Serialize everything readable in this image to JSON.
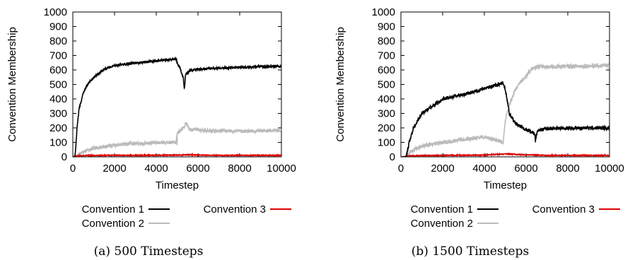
{
  "chart_data": [
    {
      "type": "line",
      "caption": "(a) 500 Timesteps",
      "xlabel": "Timestep",
      "ylabel": "Convention Membership",
      "xlim": [
        0,
        10000
      ],
      "ylim": [
        0,
        1000
      ],
      "xticks": [
        0,
        2000,
        4000,
        6000,
        8000,
        10000
      ],
      "yticks": [
        0,
        100,
        200,
        300,
        400,
        500,
        600,
        700,
        800,
        900,
        1000
      ],
      "legend_position": "bottom",
      "grid": false,
      "series": [
        {
          "name": "Convention 1",
          "color": "#000000",
          "noise": 8,
          "x": [
            0,
            100,
            150,
            200,
            300,
            500,
            700,
            1000,
            1500,
            2000,
            3000,
            4000,
            4950,
            5000,
            5150,
            5300,
            5350,
            5400,
            5600,
            6000,
            7000,
            8000,
            9000,
            10000
          ],
          "y": [
            0,
            0,
            80,
            200,
            330,
            440,
            500,
            550,
            605,
            630,
            648,
            662,
            675,
            650,
            610,
            540,
            460,
            570,
            595,
            605,
            612,
            618,
            622,
            625
          ]
        },
        {
          "name": "Convention 2",
          "color": "#bbbbbb",
          "noise": 12,
          "x": [
            0,
            100,
            300,
            500,
            1000,
            2000,
            3000,
            4000,
            4950,
            5000,
            5300,
            5450,
            5600,
            6000,
            7000,
            8000,
            9000,
            10000
          ],
          "y": [
            0,
            0,
            15,
            35,
            60,
            80,
            92,
            98,
            100,
            160,
            205,
            230,
            190,
            185,
            180,
            178,
            180,
            180
          ],
          "spikes": [
            [
              5400,
              240
            ],
            [
              5000,
              80
            ]
          ]
        },
        {
          "name": "Convention 3",
          "color": "#dd0000",
          "noise": 3,
          "x": [
            0,
            300,
            1000,
            3000,
            5000,
            5500,
            7000,
            10000
          ],
          "y": [
            0,
            8,
            10,
            10,
            12,
            14,
            10,
            10
          ]
        }
      ]
    },
    {
      "type": "line",
      "caption": "(b) 1500 Timesteps",
      "xlabel": "Timestep",
      "ylabel": "Convention Membership",
      "xlim": [
        0,
        10000
      ],
      "ylim": [
        0,
        1000
      ],
      "xticks": [
        0,
        2000,
        4000,
        6000,
        8000,
        10000
      ],
      "yticks": [
        0,
        100,
        200,
        300,
        400,
        500,
        600,
        700,
        800,
        900,
        1000
      ],
      "legend_position": "bottom",
      "grid": false,
      "series": [
        {
          "name": "Convention 1",
          "color": "#000000",
          "noise": 12,
          "x": [
            0,
            250,
            400,
            600,
            1000,
            1500,
            2000,
            3000,
            4000,
            4900,
            5000,
            5200,
            5500,
            6000,
            6400,
            6450,
            6550,
            7000,
            8000,
            9000,
            10000
          ],
          "y": [
            0,
            0,
            100,
            200,
            300,
            350,
            400,
            430,
            470,
            510,
            470,
            300,
            230,
            185,
            165,
            120,
            180,
            195,
            198,
            200,
            198
          ],
          "spikes": [
            [
              6450,
              100
            ]
          ]
        },
        {
          "name": "Convention 2",
          "color": "#bbbbbb",
          "noise": 14,
          "x": [
            0,
            250,
            500,
            1000,
            2000,
            3000,
            4000,
            4900,
            5000,
            5200,
            5500,
            6000,
            6300,
            6600,
            7000,
            8000,
            9000,
            10000
          ],
          "y": [
            0,
            0,
            40,
            75,
            100,
            120,
            140,
            100,
            250,
            360,
            470,
            560,
            610,
            620,
            622,
            625,
            628,
            630
          ]
        },
        {
          "name": "Convention 3",
          "color": "#dd0000",
          "noise": 3,
          "x": [
            0,
            500,
            2000,
            4000,
            5000,
            6000,
            7000,
            10000
          ],
          "y": [
            0,
            8,
            10,
            12,
            20,
            14,
            10,
            10
          ]
        }
      ]
    }
  ]
}
